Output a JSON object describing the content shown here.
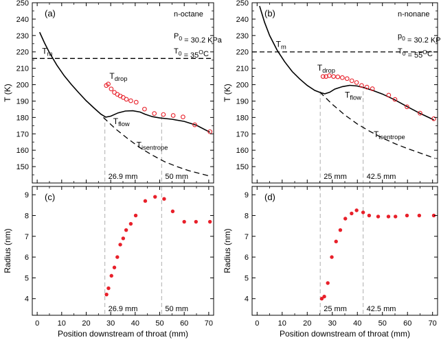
{
  "chart_data": [
    {
      "panel": "(a)",
      "type": "line",
      "substance": "n-octane",
      "p0_label": "P",
      "p0_sub": "0",
      "p0_val": " = 30.2 KPa",
      "t0_label": "T",
      "t0_sub": "0",
      "t0_val": " = 35",
      "t0_sup": "O",
      "t0_unit": "C",
      "ylabel": "T (K)",
      "ylim": [
        140,
        250
      ],
      "yticks": [
        150,
        160,
        170,
        180,
        190,
        200,
        210,
        220,
        230,
        240,
        250
      ],
      "xlim": [
        -2,
        72
      ],
      "tm": 216,
      "tm_label": "T",
      "tm_sub": "m",
      "markers": [
        {
          "x": 27.6,
          "label": "26.9 mm"
        },
        {
          "x": 50.8,
          "label": "50 mm"
        }
      ],
      "t_flow": {
        "label": "T",
        "sub": "flow",
        "x": [
          1,
          3,
          5,
          8,
          11,
          14,
          17,
          20,
          23,
          26,
          28,
          30,
          33,
          36,
          39,
          42,
          44,
          47,
          50,
          55,
          60,
          65,
          70.5
        ],
        "y": [
          232,
          225.5,
          219.5,
          212,
          205.5,
          200,
          195,
          190.2,
          186,
          182,
          180.2,
          180.8,
          182.8,
          183.9,
          184.1,
          183.3,
          182,
          180.5,
          179.7,
          178.9,
          177.6,
          175.2,
          171
        ]
      },
      "t_isentrope": {
        "label": "T",
        "sub": "isentrope",
        "x": [
          27,
          32,
          37,
          42,
          47,
          52,
          57,
          62,
          67,
          71
        ],
        "y": [
          180,
          173,
          167,
          161.5,
          157,
          153,
          150,
          147.5,
          145.5,
          144
        ]
      },
      "t_drop": {
        "label": "T",
        "sub": "drop",
        "x": [
          28.2,
          29,
          30.2,
          31.5,
          32.7,
          33.9,
          35.1,
          36.4,
          38.2,
          40.4,
          43.8,
          47.8,
          51.5,
          55.5,
          59.5,
          64.3,
          70.5
        ],
        "y": [
          199.5,
          200.4,
          197.4,
          195.3,
          194.1,
          193.1,
          192.2,
          191.1,
          190.2,
          189.3,
          185.1,
          182.4,
          181.8,
          181.2,
          180.3,
          175.5,
          171.3
        ]
      }
    },
    {
      "panel": "(b)",
      "type": "line",
      "substance": "n-nonane",
      "p0_label": "p",
      "p0_sub": "0",
      "p0_val": " = 30.2 KPa",
      "t0_label": "T",
      "t0_sub": "0",
      "t0_val": " = 55",
      "t0_sup": "O",
      "t0_unit": "C",
      "ylabel": "T (K)",
      "ylim": [
        140,
        250
      ],
      "yticks": [
        150,
        160,
        170,
        180,
        190,
        200,
        210,
        220,
        230,
        240,
        250
      ],
      "xlim": [
        -2,
        72
      ],
      "tm": 220,
      "tm_label": "T",
      "tm_sub": "m",
      "markers": [
        {
          "x": 25.2,
          "label": "25 mm"
        },
        {
          "x": 42.3,
          "label": "42.5 mm"
        }
      ],
      "t_flow": {
        "label": "T",
        "sub": "flow",
        "x": [
          1,
          3,
          5,
          8,
          11,
          14,
          17,
          20,
          23,
          25,
          27,
          29,
          31,
          34,
          37,
          40,
          43,
          46,
          50,
          55,
          60,
          65,
          70.5
        ],
        "y": [
          248,
          238,
          230,
          221,
          214,
          208,
          203.5,
          199.5,
          196.5,
          195.3,
          194.4,
          195.4,
          197.3,
          198.8,
          199.6,
          199.2,
          198,
          196.6,
          194.3,
          190.7,
          186.5,
          182.5,
          178.5
        ]
      },
      "t_isentrope": {
        "label": "T",
        "sub": "isentrope",
        "x": [
          25,
          30,
          35,
          40,
          45,
          50,
          55,
          60,
          65,
          71
        ],
        "y": [
          195.5,
          188,
          181.5,
          176,
          171.5,
          167.5,
          164,
          161,
          158.3,
          155
        ]
      },
      "t_drop": {
        "label": "T",
        "sub": "drop",
        "x": [
          26.3,
          27.5,
          28.8,
          30.5,
          32.2,
          34,
          35.9,
          37.8,
          39.7,
          41.7,
          43.8,
          46,
          52.5,
          55,
          59.8,
          65,
          70.5
        ],
        "y": [
          205,
          205,
          205.5,
          205,
          204.8,
          204.3,
          203.7,
          202.4,
          201.3,
          199.5,
          198.5,
          197.5,
          193.6,
          191,
          186.5,
          182.6,
          179.2
        ]
      }
    },
    {
      "panel": "(c)",
      "type": "scatter",
      "ylabel": "Radius (nm)",
      "ylim": [
        3.2,
        9.4
      ],
      "yticks": [
        4,
        5,
        6,
        7,
        8,
        9
      ],
      "xlabel": "Position downstream of throat (mm)",
      "xlim": [
        -2,
        72
      ],
      "xticks": [
        0,
        10,
        20,
        30,
        40,
        50,
        60,
        70
      ],
      "markers": [
        {
          "x": 27.6,
          "label": "26.9 mm"
        },
        {
          "x": 50.8,
          "label": "50 mm"
        }
      ],
      "x": [
        28.3,
        29.1,
        30.3,
        31.5,
        32.7,
        33.9,
        35.1,
        36.3,
        38.2,
        40.2,
        44.1,
        48.1,
        51.8,
        55.3,
        60,
        64.8,
        70.5
      ],
      "y": [
        4.2,
        4.5,
        5.1,
        5.5,
        6.0,
        6.6,
        6.9,
        7.3,
        7.6,
        8.0,
        8.7,
        8.9,
        8.8,
        8.2,
        7.7,
        7.7,
        7.7
      ]
    },
    {
      "panel": "(d)",
      "type": "scatter",
      "ylabel": "Radius (nm)",
      "ylim": [
        3.2,
        9.4
      ],
      "yticks": [
        4,
        5,
        6,
        7,
        8,
        9
      ],
      "xlabel": "Position downstream of throat (mm)",
      "xlim": [
        -2,
        72
      ],
      "xticks": [
        0,
        10,
        20,
        30,
        40,
        50,
        60,
        70
      ],
      "markers": [
        {
          "x": 25.2,
          "label": "25 mm"
        },
        {
          "x": 42.3,
          "label": "42.5 mm"
        }
      ],
      "x": [
        25.8,
        26.8,
        28.2,
        29.8,
        31.5,
        33.2,
        35.2,
        37.7,
        39.7,
        42.3,
        44.7,
        48.3,
        52.4,
        55.2,
        59.8,
        64.7,
        70.5
      ],
      "y": [
        4.0,
        4.1,
        4.75,
        6.0,
        6.75,
        7.3,
        7.85,
        8.1,
        8.25,
        8.15,
        8.0,
        7.95,
        7.95,
        7.95,
        8.0,
        8.0,
        8.0
      ]
    }
  ]
}
